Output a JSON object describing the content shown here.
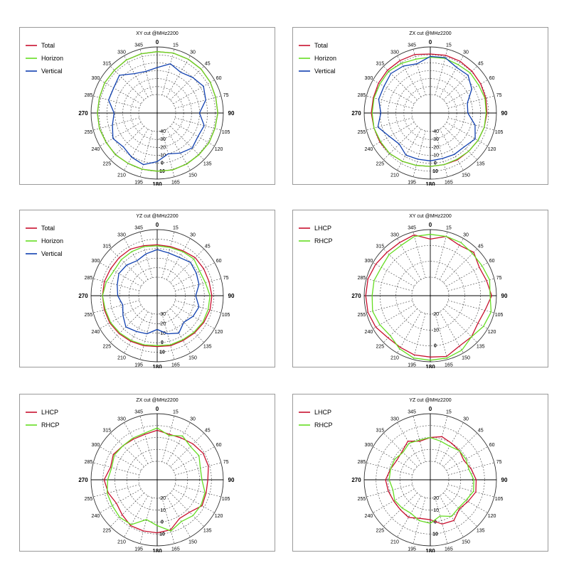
{
  "chart_data": [
    {
      "type": "polar",
      "title": "XY cut @MHz2200",
      "angles": [
        0,
        15,
        30,
        45,
        60,
        75,
        90,
        105,
        120,
        135,
        150,
        165,
        180,
        195,
        210,
        225,
        240,
        255,
        270,
        285,
        300,
        315,
        330,
        345
      ],
      "angle_labels": [
        "0",
        "15",
        "30",
        "45",
        "60",
        "75",
        "90",
        "105",
        "120",
        "135",
        "150",
        "165",
        "180",
        "195",
        "210",
        "225",
        "240",
        "255",
        "270",
        "285",
        "300",
        "315",
        "330",
        "345"
      ],
      "radial_labels": [
        "-40",
        "-30",
        "-20",
        "-10",
        "0",
        "10"
      ],
      "rlim": [
        -50,
        10
      ],
      "grid": true,
      "legend_position": "top-left",
      "series": [
        {
          "name": "Total",
          "color": "#c8102e",
          "values": [
            4,
            5,
            5,
            5,
            4,
            3,
            3,
            2,
            2,
            1,
            1,
            1,
            0,
            0,
            0,
            1,
            1,
            2,
            2,
            2,
            3,
            3,
            4,
            4
          ]
        },
        {
          "name": "Horizon",
          "color": "#66dd22",
          "values": [
            4,
            5,
            5,
            5,
            4,
            3,
            3,
            2,
            2,
            1,
            1,
            1,
            0,
            0,
            0,
            1,
            1,
            2,
            2,
            2,
            3,
            3,
            4,
            4
          ]
        },
        {
          "name": "Vertical",
          "color": "#1040b0",
          "values": [
            -16,
            -9,
            -14,
            -10,
            -6,
            -10,
            -20,
            -12,
            -14,
            -11,
            -15,
            -20,
            -12,
            -6,
            -9,
            -13,
            -9,
            -15,
            -19,
            -10,
            -10,
            -6,
            -16,
            -19
          ]
        }
      ]
    },
    {
      "type": "polar",
      "title": "ZX cut @MHz2200",
      "angles": [
        0,
        15,
        30,
        45,
        60,
        75,
        90,
        105,
        120,
        135,
        150,
        165,
        180,
        195,
        210,
        225,
        240,
        255,
        270,
        285,
        300,
        315,
        330,
        345
      ],
      "angle_labels": [
        "0",
        "15",
        "30",
        "45",
        "60",
        "75",
        "90",
        "105",
        "120",
        "135",
        "150",
        "165",
        "180",
        "195",
        "210",
        "225",
        "240",
        "255",
        "270",
        "285",
        "300",
        "315",
        "330",
        "345"
      ],
      "radial_labels": [
        "-40",
        "-30",
        "-20",
        "-10",
        "0",
        "10"
      ],
      "rlim": [
        -50,
        10
      ],
      "grid": true,
      "legend_position": "top-left",
      "series": [
        {
          "name": "Total",
          "color": "#c8102e",
          "values": [
            1,
            2,
            2,
            1,
            0,
            -1,
            -2,
            -3,
            -4,
            -5,
            -5,
            -6,
            -6,
            -5,
            -3,
            -1,
            0,
            0,
            1,
            1,
            2,
            3,
            3,
            3
          ]
        },
        {
          "name": "Horizon",
          "color": "#66dd22",
          "values": [
            -3,
            -2,
            -3,
            -2,
            -3,
            -2,
            -3,
            -3,
            -4,
            -5,
            -6,
            -6,
            -6,
            -5,
            -3,
            -1,
            -1,
            0,
            0,
            0,
            0,
            1,
            -1,
            -3
          ]
        },
        {
          "name": "Vertical",
          "color": "#1040b0",
          "values": [
            -2,
            -1,
            -7,
            -6,
            -13,
            -25,
            -26,
            -15,
            -8,
            -13,
            -13,
            -14,
            -13,
            -13,
            -12,
            -18,
            -14,
            -5,
            -11,
            -6,
            -6,
            -3,
            -5,
            -9
          ]
        }
      ]
    },
    {
      "type": "polar",
      "title": "YZ cut @MHz2200",
      "angles": [
        0,
        15,
        30,
        45,
        60,
        75,
        90,
        105,
        120,
        135,
        150,
        165,
        180,
        195,
        210,
        225,
        240,
        255,
        270,
        285,
        300,
        315,
        330,
        345
      ],
      "angle_labels": [
        "0",
        "15",
        "30",
        "45",
        "60",
        "75",
        "90",
        "105",
        "120",
        "135",
        "150",
        "165",
        "180",
        "195",
        "210",
        "225",
        "240",
        "255",
        "270",
        "285",
        "300",
        "315",
        "330",
        "345"
      ],
      "radial_labels": [
        "-30",
        "-20",
        "-10",
        "0",
        "10"
      ],
      "rlim": [
        -40,
        10
      ],
      "grid": true,
      "legend_position": "top-left",
      "series": [
        {
          "name": "Total",
          "color": "#c8102e",
          "values": [
            -6,
            -6,
            -5,
            -3,
            -3,
            -3,
            -2,
            -2,
            -3,
            -4,
            -5,
            -5,
            -6,
            -5,
            -4,
            -3,
            -2,
            -2,
            -2,
            -2,
            -3,
            -3,
            -3,
            -5
          ]
        },
        {
          "name": "Horizon",
          "color": "#66dd22",
          "values": [
            -7,
            -7,
            -6,
            -5,
            -8,
            -7,
            -4,
            -4,
            -4,
            -5,
            -6,
            -6,
            -7,
            -6,
            -5,
            -4,
            -3,
            -3,
            -2,
            -4,
            -7,
            -6,
            -6,
            -6
          ]
        },
        {
          "name": "Vertical",
          "color": "#1040b0",
          "values": [
            -11,
            -13,
            -13,
            -10,
            -12,
            -14,
            -19,
            -14,
            -16,
            -20,
            -14,
            -18,
            -24,
            -18,
            -16,
            -13,
            -18,
            -22,
            -18,
            -16,
            -13,
            -14,
            -17,
            -14
          ]
        }
      ]
    },
    {
      "type": "polar",
      "title": "XY cut @MHz2200",
      "angles": [
        0,
        15,
        30,
        45,
        60,
        75,
        90,
        105,
        120,
        135,
        150,
        165,
        180,
        195,
        210,
        225,
        240,
        255,
        270,
        285,
        300,
        315,
        330,
        345
      ],
      "angle_labels": [
        "0",
        "15",
        "30",
        "45",
        "60",
        "75",
        "90",
        "105",
        "120",
        "135",
        "150",
        "165",
        "180",
        "195",
        "210",
        "225",
        "240",
        "255",
        "270",
        "285",
        "300",
        "315",
        "330",
        "345"
      ],
      "radial_labels": [
        "-20",
        "-10",
        "0"
      ],
      "rlim": [
        -30,
        0
      ],
      "grid": true,
      "legend_position": "top-left",
      "series": [
        {
          "name": "LHCP",
          "color": "#c8102e",
          "values": [
            -6,
            -3,
            -5,
            -3,
            -6,
            -5,
            -3,
            -6,
            -7,
            -5,
            -5,
            -2,
            -3,
            -3,
            -4,
            -4,
            -2,
            -1,
            -1,
            -1,
            -2,
            -3,
            -3,
            -2
          ]
        },
        {
          "name": "RHCP",
          "color": "#66dd22",
          "values": [
            -3,
            -3,
            -3,
            -4,
            -4,
            -3,
            -4,
            -2,
            -3,
            -5,
            -2,
            -1,
            -1,
            -1,
            -3,
            -6,
            -5,
            -4,
            -5,
            -5,
            -6,
            -5,
            -5,
            -3
          ]
        }
      ]
    },
    {
      "type": "polar",
      "title": "ZX cut @MHz2200",
      "angles": [
        0,
        15,
        30,
        45,
        60,
        75,
        90,
        105,
        120,
        135,
        150,
        165,
        180,
        195,
        210,
        225,
        240,
        255,
        270,
        285,
        300,
        315,
        330,
        345
      ],
      "angle_labels": [
        "0",
        "15",
        "30",
        "45",
        "60",
        "75",
        "90",
        "105",
        "120",
        "135",
        "150",
        "165",
        "180",
        "195",
        "210",
        "225",
        "240",
        "255",
        "270",
        "285",
        "300",
        "315",
        "330",
        "345"
      ],
      "radial_labels": [
        "-20",
        "-10",
        "0",
        "10"
      ],
      "rlim": [
        -30,
        10
      ],
      "grid": true,
      "legend_position": "top-left",
      "series": [
        {
          "name": "LHCP",
          "color": "#c8102e",
          "values": [
            -4,
            -6,
            -5,
            -3,
            -1,
            -1,
            -3,
            -3,
            -2,
            -7,
            -8,
            -2,
            -1,
            -1,
            -1,
            -4,
            -6,
            -3,
            -1,
            -5,
            -3,
            -5,
            -6,
            -6
          ]
        },
        {
          "name": "RHCP",
          "color": "#66dd22",
          "values": [
            -2,
            -7,
            -3,
            -6,
            -5,
            -8,
            -8,
            -4,
            -3,
            -3,
            -5,
            -1,
            -7,
            -11,
            -2,
            -1,
            -2,
            -2,
            -4,
            -6,
            -4,
            -5,
            -5,
            -5
          ]
        }
      ]
    },
    {
      "type": "polar",
      "title": "YZ cut @MHz2200",
      "angles": [
        0,
        15,
        30,
        45,
        60,
        75,
        90,
        105,
        120,
        135,
        150,
        165,
        180,
        195,
        210,
        225,
        240,
        255,
        270,
        285,
        300,
        315,
        330,
        345
      ],
      "angle_labels": [
        "0",
        "15",
        "30",
        "45",
        "60",
        "75",
        "90",
        "105",
        "120",
        "135",
        "150",
        "165",
        "180",
        "195",
        "210",
        "225",
        "240",
        "255",
        "270",
        "285",
        "300",
        "315",
        "330",
        "345"
      ],
      "radial_labels": [
        "-20",
        "-10",
        "0",
        "10"
      ],
      "rlim": [
        -30,
        10
      ],
      "grid": true,
      "legend_position": "top-left",
      "series": [
        {
          "name": "LHCP",
          "color": "#c8102e",
          "values": [
            -10,
            -8,
            -10,
            -11,
            -13,
            -10,
            -7,
            -6,
            -9,
            -11,
            -6,
            -7,
            -12,
            -12,
            -9,
            -10,
            -10,
            -9,
            -8,
            -11,
            -13,
            -12,
            -8,
            -12
          ]
        },
        {
          "name": "RHCP",
          "color": "#66dd22",
          "values": [
            -10,
            -12,
            -13,
            -11,
            -11,
            -12,
            -9,
            -8,
            -11,
            -12,
            -10,
            -14,
            -9,
            -10,
            -13,
            -12,
            -11,
            -13,
            -11,
            -11,
            -11,
            -13,
            -10,
            -11
          ]
        }
      ]
    }
  ]
}
